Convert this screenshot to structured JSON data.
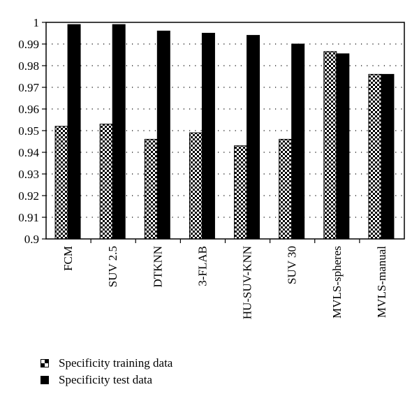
{
  "chart_data": {
    "type": "bar",
    "title": "",
    "xlabel": "",
    "ylabel": "",
    "ylim": [
      0.9,
      1.0
    ],
    "yticks": [
      "0.9",
      "0.91",
      "0.92",
      "0.93",
      "0.94",
      "0.95",
      "0.96",
      "0.97",
      "0.98",
      "0.99",
      "1"
    ],
    "grid": "horizontal dotted",
    "legend_position": "bottom-left",
    "categories": [
      "FCM",
      "SUV 2.5",
      "DTKNN",
      "3-FLAB",
      "HU-SUV-KNN",
      "SUV 30",
      "MVLS-spheres",
      "MVLS-manual"
    ],
    "series": [
      {
        "name": "Specificity training data",
        "pattern": "checkerboard",
        "color": "#000000",
        "values": [
          0.952,
          0.953,
          0.946,
          0.949,
          0.943,
          0.946,
          0.9865,
          0.976
        ]
      },
      {
        "name": "Specificity test data",
        "pattern": "solid",
        "color": "#000000",
        "values": [
          0.999,
          0.999,
          0.996,
          0.995,
          0.994,
          0.99,
          0.9855,
          0.976
        ]
      }
    ]
  }
}
